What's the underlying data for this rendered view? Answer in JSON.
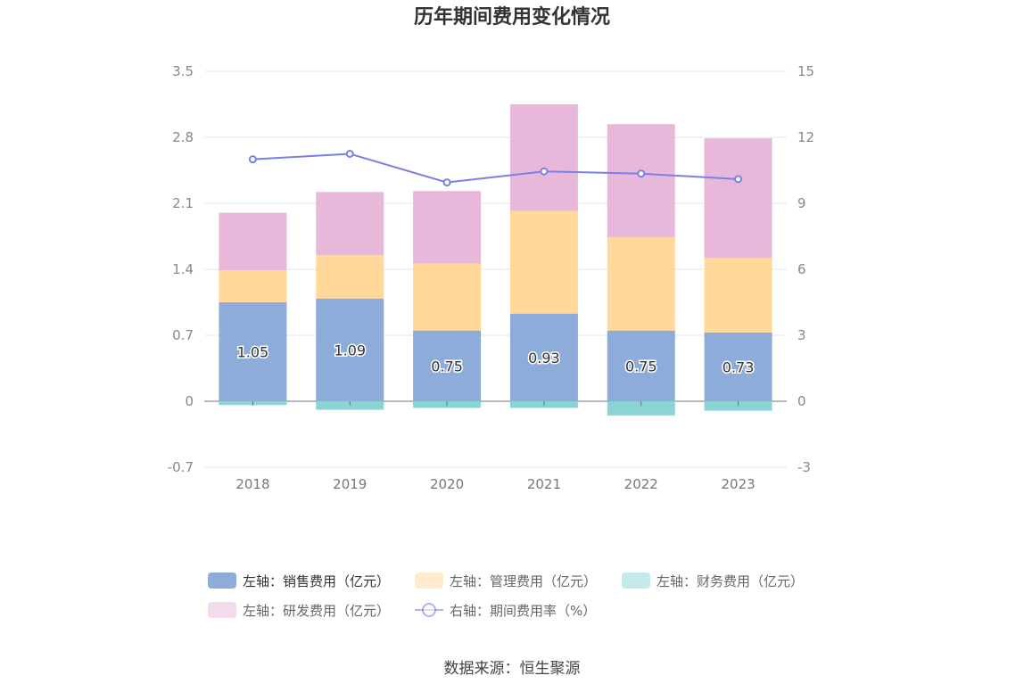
{
  "chart_data": {
    "type": "bar",
    "title": "历年期间费用变化情况",
    "categories": [
      "2018",
      "2019",
      "2020",
      "2021",
      "2022",
      "2023"
    ],
    "stacked": true,
    "left_axis": {
      "min": -0.7,
      "max": 3.5,
      "ticks": [
        "3.5",
        "2.8",
        "2.1",
        "1.4",
        "0.7",
        "0",
        "-0.7"
      ]
    },
    "right_axis": {
      "min": -3,
      "max": 15,
      "ticks": [
        "15",
        "12",
        "9",
        "6",
        "3",
        "0",
        "-3"
      ]
    },
    "series": [
      {
        "name": "左轴：销售费用（亿元）",
        "axis": "left",
        "type": "bar",
        "color": "#8eacd9",
        "values": [
          1.05,
          1.09,
          0.75,
          0.93,
          0.75,
          0.73
        ],
        "labels": [
          "1.05",
          "1.09",
          "0.75",
          "0.93",
          "0.75",
          "0.73"
        ]
      },
      {
        "name": "左轴：管理费用（亿元）",
        "axis": "left",
        "type": "bar",
        "color": "#ffd89a",
        "values": [
          0.34,
          0.46,
          0.71,
          1.09,
          0.99,
          0.79
        ]
      },
      {
        "name": "左轴：财务费用（亿元）",
        "axis": "left",
        "type": "bar",
        "color": "#8ad4d6",
        "values": [
          -0.04,
          -0.09,
          -0.07,
          -0.07,
          -0.15,
          -0.1
        ]
      },
      {
        "name": "左轴：研发费用（亿元）",
        "axis": "left",
        "type": "bar",
        "color": "#e8b8da",
        "values": [
          0.61,
          0.67,
          0.77,
          1.13,
          1.2,
          1.27
        ]
      },
      {
        "name": "右轴：期间费用率（%）",
        "axis": "right",
        "type": "line",
        "color": "#7b7fe6",
        "values": [
          11.0,
          11.25,
          9.95,
          10.45,
          10.35,
          10.1
        ]
      }
    ],
    "legend_position": "bottom",
    "grid": true
  },
  "source": "数据来源：恒生聚源"
}
